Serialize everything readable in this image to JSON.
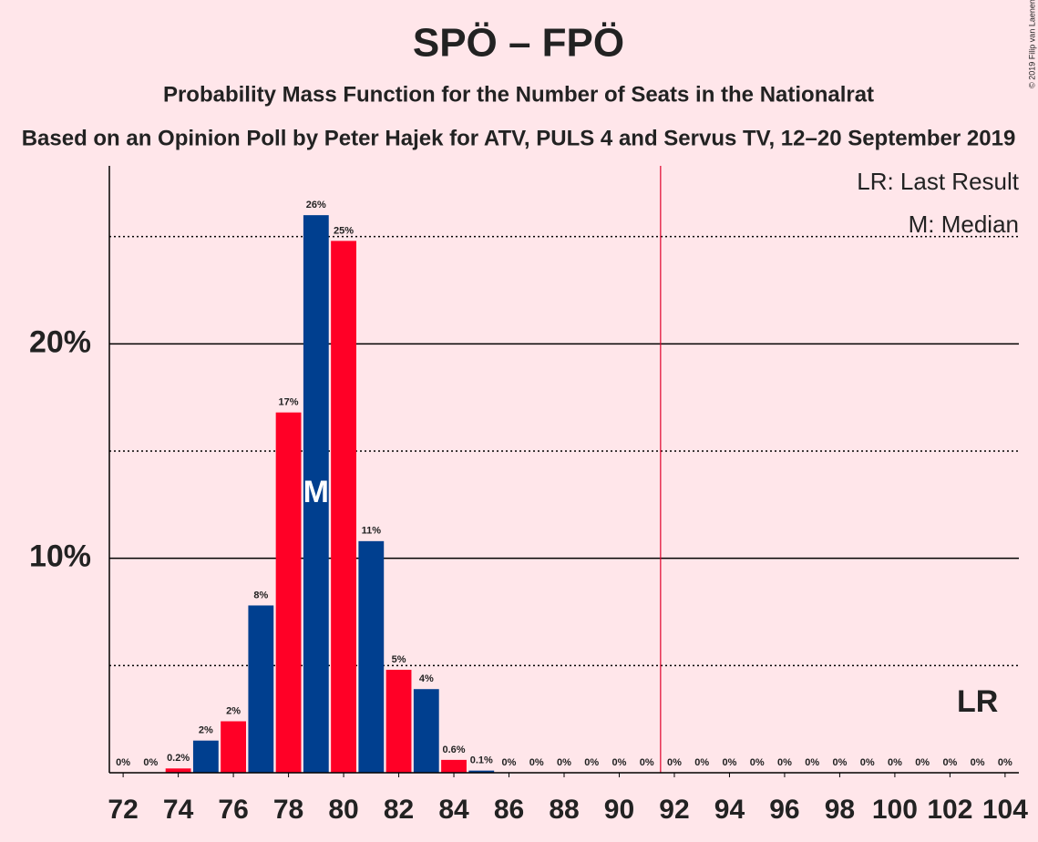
{
  "chart_data": {
    "type": "bar",
    "title": "SPÖ – FPÖ",
    "subtitle": "Probability Mass Function for the Number of Seats in the Nationalrat",
    "caption": "Based on an Opinion Poll by Peter Hajek for ATV, PULS 4 and Servus TV, 12–20 September 2019",
    "copyright": "© 2019 Filip van Laenen",
    "x": [
      72,
      73,
      74,
      75,
      76,
      77,
      78,
      79,
      80,
      81,
      82,
      83,
      84,
      85,
      86,
      87,
      88,
      89,
      90,
      91,
      92,
      93,
      94,
      95,
      96,
      97,
      98,
      99,
      100,
      101,
      102,
      103,
      104
    ],
    "values": [
      0,
      0,
      0.2,
      1.5,
      2.4,
      7.8,
      16.8,
      26,
      24.8,
      10.8,
      4.8,
      3.9,
      0.6,
      0.1,
      0,
      0,
      0,
      0,
      0,
      0,
      0,
      0,
      0,
      0,
      0,
      0,
      0,
      0,
      0,
      0,
      0,
      0,
      0
    ],
    "value_labels": [
      "0%",
      "0%",
      "0.2%",
      "2%",
      "2%",
      "8%",
      "17%",
      "26%",
      "25%",
      "11%",
      "5%",
      "4%",
      "0.6%",
      "0.1%",
      "0%",
      "0%",
      "0%",
      "0%",
      "0%",
      "0%",
      "0%",
      "0%",
      "0%",
      "0%",
      "0%",
      "0%",
      "0%",
      "0%",
      "0%",
      "0%",
      "0%",
      "0%",
      "0%"
    ],
    "colors": [
      "#ff0026",
      "#003f8f",
      "#ff0026",
      "#003f8f",
      "#ff0026",
      "#003f8f",
      "#ff0026",
      "#003f8f",
      "#ff0026",
      "#003f8f",
      "#ff0026",
      "#003f8f",
      "#ff0026",
      "#003f8f",
      "#ff0026",
      "#003f8f",
      "#ff0026",
      "#003f8f",
      "#ff0026",
      "#003f8f",
      "#ff0026",
      "#003f8f",
      "#ff0026",
      "#003f8f",
      "#ff0026",
      "#003f8f",
      "#ff0026",
      "#003f8f",
      "#ff0026",
      "#003f8f",
      "#ff0026",
      "#003f8f",
      "#ff0026"
    ],
    "xlim": [
      71.5,
      104.5
    ],
    "xticks": [
      72,
      74,
      76,
      78,
      80,
      82,
      84,
      86,
      88,
      90,
      92,
      94,
      96,
      98,
      100,
      102,
      104
    ],
    "ylim": [
      0,
      28.3
    ],
    "yticks": [
      {
        "value": 10,
        "label": "10%"
      },
      {
        "value": 20,
        "label": "20%"
      }
    ],
    "minor_yticks": [
      5,
      15,
      25
    ],
    "majority_line": 91.5,
    "median": {
      "x": 79,
      "label": "M"
    },
    "last_result": {
      "x": 103,
      "label": "LR"
    },
    "legend": [
      "LR: Last Result",
      "M: Median"
    ]
  }
}
